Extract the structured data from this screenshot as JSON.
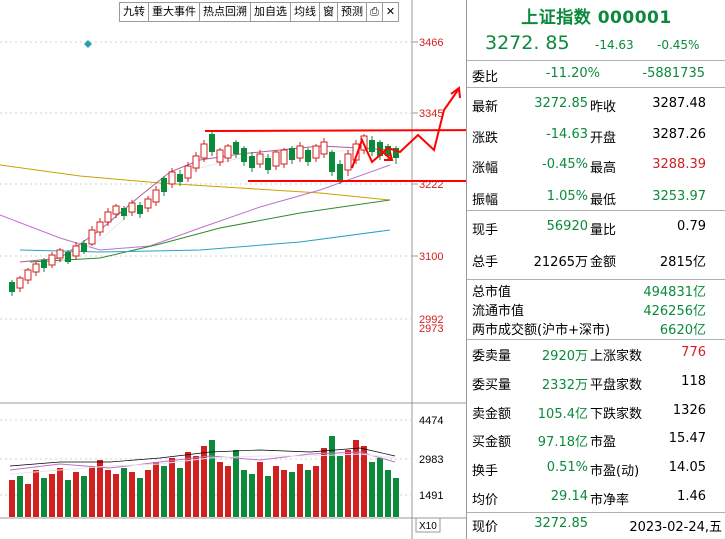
{
  "toolbar": {
    "buttons": [
      "九转",
      "重大事件",
      "热点回溯",
      "加自选",
      "均线",
      "窗",
      "预测",
      "⎙",
      "✕"
    ]
  },
  "chart": {
    "price_scale": [
      "3466",
      "3345",
      "3222",
      "3100",
      "2992",
      "2973"
    ],
    "volume_scale": [
      "4474",
      "2983",
      "1491"
    ],
    "volume_unit": "X10"
  },
  "colors": {
    "up": "#d21f1f",
    "down": "#0a8a3a",
    "ma_white": "#e8e8e8",
    "ma_yellow": "#c8a400",
    "ma_purple": "#c070d0",
    "ma_green": "#2e8b2e",
    "ma_blue": "#2aa0c0",
    "annotation": "#ff0000",
    "marker": "#29a0b0"
  },
  "quote": {
    "name": "上证指数",
    "code": "000001",
    "price": "3272. 85",
    "change": "-14.63",
    "change_pct": "-0.45%",
    "rows": [
      {
        "l1": "委比",
        "v1": "-11.20%",
        "l2": "",
        "v2": "-5881735"
      },
      {
        "l1": "最新",
        "v1": "3272.85",
        "l2": "昨收",
        "v2": "3287.48"
      },
      {
        "l1": "涨跌",
        "v1": "-14.63",
        "l2": "开盘",
        "v2": "3287.26"
      },
      {
        "l1": "涨幅",
        "v1": "-0.45%",
        "l2": "最高",
        "v2": "3288.39"
      },
      {
        "l1": "振幅",
        "v1": "1.05%",
        "l2": "最低",
        "v2": "3253.97"
      },
      {
        "l1": "现手",
        "v1": "56920",
        "l2": "量比",
        "v2": "0.79"
      },
      {
        "l1": "总手",
        "v1": "21265万",
        "l2": "金额",
        "v2": "2815亿"
      }
    ],
    "cap_rows": [
      {
        "label": "总市值",
        "value": "494831亿"
      },
      {
        "label": "流通市值",
        "value": "426256亿"
      },
      {
        "label": "两市成交额(沪市+深市)",
        "value": "6620亿"
      }
    ],
    "stat_rows": [
      {
        "l1": "委卖量",
        "v1": "2920万",
        "l2": "上涨家数",
        "v2": "776"
      },
      {
        "l1": "委买量",
        "v1": "2332万",
        "l2": "平盘家数",
        "v2": "118"
      },
      {
        "l1": "卖金额",
        "v1": "105.4亿",
        "l2": "下跌家数",
        "v2": "1326"
      },
      {
        "l1": "买金额",
        "v1": "97.18亿",
        "l2": "市盈",
        "v2": "15.47"
      },
      {
        "l1": "换手",
        "v1": "0.51%",
        "l2": "市盈(动)",
        "v2": "14.05"
      },
      {
        "l1": "均价",
        "v1": "29.14",
        "l2": "市净率",
        "v2": "1.46"
      }
    ],
    "bottom": {
      "label": "现价",
      "value": "3272.85",
      "date": "2023-02-24,五"
    }
  }
}
